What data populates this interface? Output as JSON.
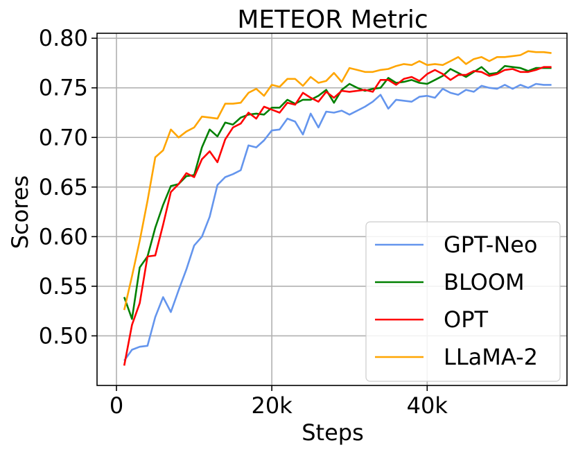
{
  "chart_data": {
    "type": "line",
    "title": "METEOR Metric",
    "xlabel": "Steps",
    "ylabel": "Scores",
    "xlim": [
      -2500,
      58000
    ],
    "ylim": [
      0.45,
      0.805
    ],
    "xticks": [
      0,
      20000,
      40000
    ],
    "xtick_labels": [
      "0",
      "20k",
      "40k"
    ],
    "yticks": [
      0.5,
      0.55,
      0.6,
      0.65,
      0.7,
      0.75,
      0.8
    ],
    "ytick_labels": [
      "0.50",
      "0.55",
      "0.60",
      "0.65",
      "0.70",
      "0.75",
      "0.80"
    ],
    "grid": true,
    "legend_position": "bottom-right",
    "x": [
      1000,
      2000,
      3000,
      4000,
      5000,
      6000,
      7000,
      8000,
      9000,
      10000,
      11000,
      12000,
      13000,
      14000,
      15000,
      16000,
      17000,
      18000,
      19000,
      20000,
      21000,
      22000,
      23000,
      24000,
      25000,
      26000,
      27000,
      28000,
      29000,
      30000,
      31000,
      32000,
      33000,
      34000,
      35000,
      36000,
      37000,
      38000,
      39000,
      40000,
      41000,
      42000,
      43000,
      44000,
      45000,
      46000,
      47000,
      48000,
      49000,
      50000,
      51000,
      52000,
      53000,
      54000,
      55000,
      56000
    ],
    "series": [
      {
        "name": "GPT-Neo",
        "color": "#6495ED",
        "values": [
          0.475,
          0.486,
          0.489,
          0.49,
          0.519,
          0.539,
          0.524,
          0.546,
          0.567,
          0.591,
          0.6,
          0.62,
          0.652,
          0.66,
          0.663,
          0.667,
          0.692,
          0.69,
          0.697,
          0.707,
          0.708,
          0.719,
          0.716,
          0.703,
          0.724,
          0.71,
          0.726,
          0.725,
          0.727,
          0.723,
          0.727,
          0.731,
          0.736,
          0.743,
          0.729,
          0.738,
          0.737,
          0.736,
          0.741,
          0.742,
          0.74,
          0.749,
          0.745,
          0.743,
          0.748,
          0.746,
          0.752,
          0.75,
          0.749,
          0.753,
          0.749,
          0.753,
          0.75,
          0.754,
          0.753,
          0.753
        ]
      },
      {
        "name": "BLOOM",
        "color": "#008000",
        "values": [
          0.539,
          0.517,
          0.569,
          0.58,
          0.609,
          0.632,
          0.651,
          0.653,
          0.661,
          0.662,
          0.69,
          0.708,
          0.701,
          0.715,
          0.713,
          0.72,
          0.723,
          0.724,
          0.723,
          0.73,
          0.73,
          0.738,
          0.734,
          0.738,
          0.738,
          0.742,
          0.748,
          0.735,
          0.748,
          0.754,
          0.75,
          0.747,
          0.749,
          0.75,
          0.76,
          0.755,
          0.756,
          0.758,
          0.755,
          0.754,
          0.758,
          0.762,
          0.769,
          0.765,
          0.761,
          0.766,
          0.771,
          0.764,
          0.765,
          0.772,
          0.771,
          0.77,
          0.767,
          0.77,
          0.77,
          0.77
        ]
      },
      {
        "name": "OPT",
        "color": "#FF0000",
        "values": [
          0.47,
          0.511,
          0.533,
          0.58,
          0.581,
          0.612,
          0.645,
          0.653,
          0.664,
          0.66,
          0.678,
          0.686,
          0.675,
          0.698,
          0.71,
          0.714,
          0.725,
          0.719,
          0.731,
          0.728,
          0.725,
          0.735,
          0.733,
          0.745,
          0.74,
          0.736,
          0.746,
          0.74,
          0.747,
          0.746,
          0.747,
          0.748,
          0.746,
          0.758,
          0.758,
          0.753,
          0.759,
          0.761,
          0.757,
          0.764,
          0.768,
          0.764,
          0.758,
          0.763,
          0.763,
          0.767,
          0.766,
          0.762,
          0.764,
          0.768,
          0.769,
          0.766,
          0.766,
          0.768,
          0.771,
          0.771
        ]
      },
      {
        "name": "LLaMA-2",
        "color": "#FFA500",
        "values": [
          0.526,
          0.56,
          0.596,
          0.636,
          0.68,
          0.687,
          0.708,
          0.7,
          0.706,
          0.71,
          0.721,
          0.72,
          0.719,
          0.734,
          0.734,
          0.735,
          0.745,
          0.749,
          0.742,
          0.753,
          0.751,
          0.759,
          0.759,
          0.752,
          0.761,
          0.755,
          0.757,
          0.765,
          0.756,
          0.77,
          0.768,
          0.766,
          0.766,
          0.768,
          0.769,
          0.772,
          0.774,
          0.773,
          0.777,
          0.773,
          0.774,
          0.773,
          0.777,
          0.781,
          0.774,
          0.779,
          0.781,
          0.777,
          0.781,
          0.781,
          0.782,
          0.783,
          0.787,
          0.786,
          0.786,
          0.785
        ]
      }
    ]
  }
}
